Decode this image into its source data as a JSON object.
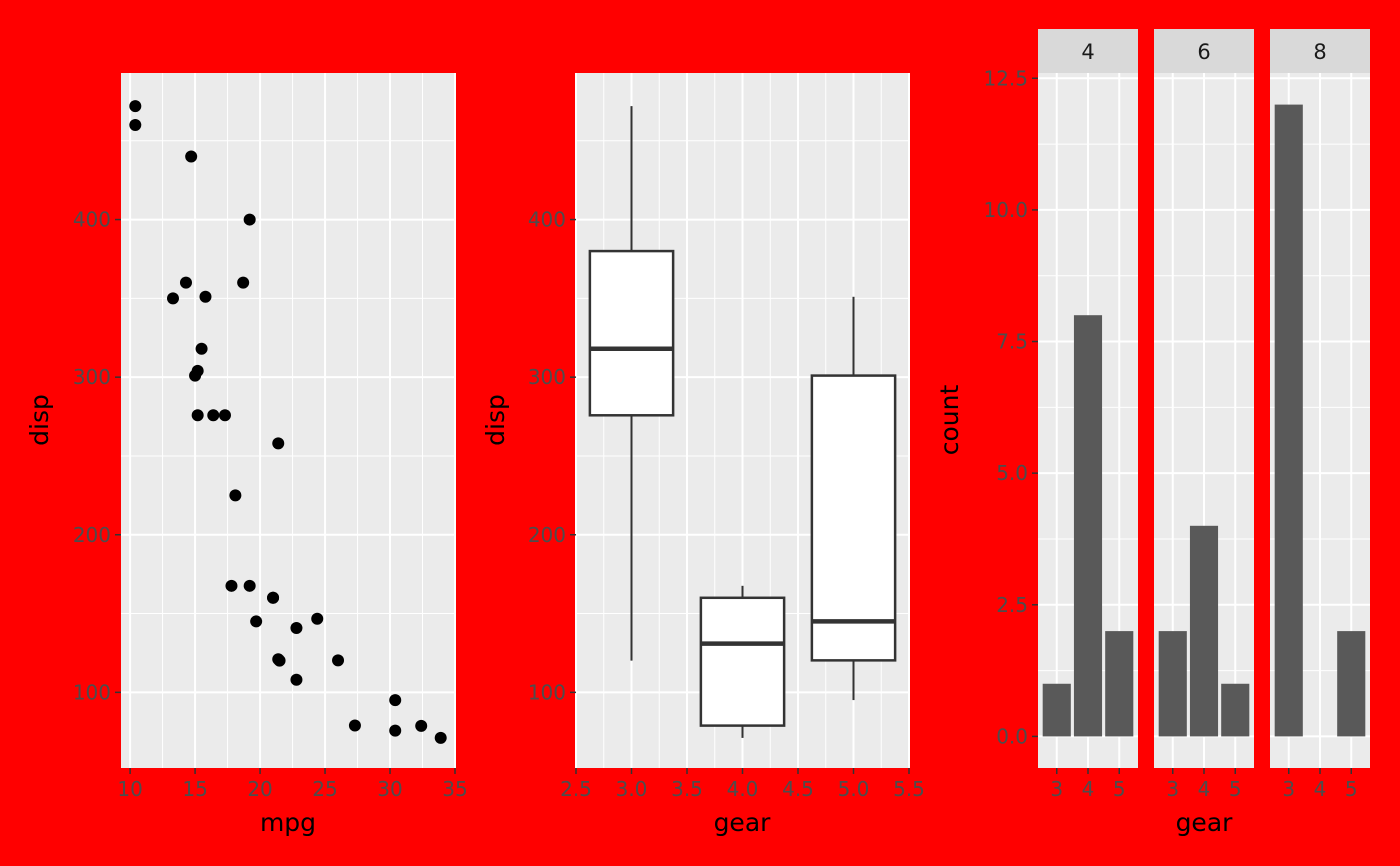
{
  "colors": {
    "background": "#ff0000",
    "panel": "#ebebeb",
    "grid": "#ffffff",
    "strip": "#d9d9d9",
    "bar": "#595959",
    "point": "#000000",
    "box_line": "#333333",
    "tick_text": "#4d4d4d"
  },
  "chart_data": [
    {
      "type": "scatter",
      "xlabel": "mpg",
      "ylabel": "disp",
      "xlim": [
        9.3,
        35.0
      ],
      "ylim": [
        52,
        493
      ],
      "xticks": [
        10,
        15,
        20,
        25,
        30,
        35
      ],
      "yticks": [
        100,
        200,
        300,
        400
      ],
      "grid": true,
      "points": [
        {
          "x": 21.0,
          "y": 160
        },
        {
          "x": 21.0,
          "y": 160
        },
        {
          "x": 22.8,
          "y": 108
        },
        {
          "x": 21.4,
          "y": 258
        },
        {
          "x": 18.7,
          "y": 360
        },
        {
          "x": 18.1,
          "y": 225
        },
        {
          "x": 14.3,
          "y": 360
        },
        {
          "x": 24.4,
          "y": 146.7
        },
        {
          "x": 22.8,
          "y": 140.8
        },
        {
          "x": 19.2,
          "y": 167.6
        },
        {
          "x": 17.8,
          "y": 167.6
        },
        {
          "x": 16.4,
          "y": 275.8
        },
        {
          "x": 17.3,
          "y": 275.8
        },
        {
          "x": 15.2,
          "y": 275.8
        },
        {
          "x": 10.4,
          "y": 472
        },
        {
          "x": 10.4,
          "y": 460
        },
        {
          "x": 14.7,
          "y": 440
        },
        {
          "x": 32.4,
          "y": 78.7
        },
        {
          "x": 30.4,
          "y": 75.7
        },
        {
          "x": 33.9,
          "y": 71.1
        },
        {
          "x": 21.5,
          "y": 120.1
        },
        {
          "x": 15.5,
          "y": 318
        },
        {
          "x": 15.2,
          "y": 304
        },
        {
          "x": 13.3,
          "y": 350
        },
        {
          "x": 19.2,
          "y": 400
        },
        {
          "x": 27.3,
          "y": 79
        },
        {
          "x": 26.0,
          "y": 120.3
        },
        {
          "x": 30.4,
          "y": 95.1
        },
        {
          "x": 15.8,
          "y": 351
        },
        {
          "x": 19.7,
          "y": 145
        },
        {
          "x": 15.0,
          "y": 301
        },
        {
          "x": 21.4,
          "y": 121
        }
      ]
    },
    {
      "type": "box",
      "xlabel": "gear",
      "ylabel": "disp",
      "xlim": [
        2.5,
        5.5
      ],
      "ylim": [
        52,
        493
      ],
      "xticks": [
        "2.5",
        "3.0",
        "3.5",
        "4.0",
        "4.5",
        "5.0",
        "5.5"
      ],
      "yticks": [
        100,
        200,
        300,
        400
      ],
      "grid": true,
      "boxes": [
        {
          "x": 3,
          "ymin": 120.1,
          "q1": 275.8,
          "median": 318,
          "q3": 380,
          "ymax": 472
        },
        {
          "x": 4,
          "ymin": 71.1,
          "q1": 78.9,
          "median": 130.9,
          "q3": 160,
          "ymax": 167.6
        },
        {
          "x": 5,
          "ymin": 95.1,
          "q1": 120.3,
          "median": 145,
          "q3": 301,
          "ymax": 351
        }
      ]
    },
    {
      "type": "bar",
      "xlabel": "gear",
      "ylabel": "count",
      "facet_by": "cyl",
      "categories": [
        "3",
        "4",
        "5"
      ],
      "ylim": [
        -0.6,
        12.6
      ],
      "yticks": [
        "0.0",
        "2.5",
        "5.0",
        "7.5",
        "10.0",
        "12.5"
      ],
      "grid": true,
      "facets": [
        {
          "name": "4",
          "values": [
            1,
            8,
            2
          ]
        },
        {
          "name": "6",
          "values": [
            2,
            4,
            1
          ]
        },
        {
          "name": "8",
          "values": [
            12,
            0,
            2
          ]
        }
      ]
    }
  ]
}
